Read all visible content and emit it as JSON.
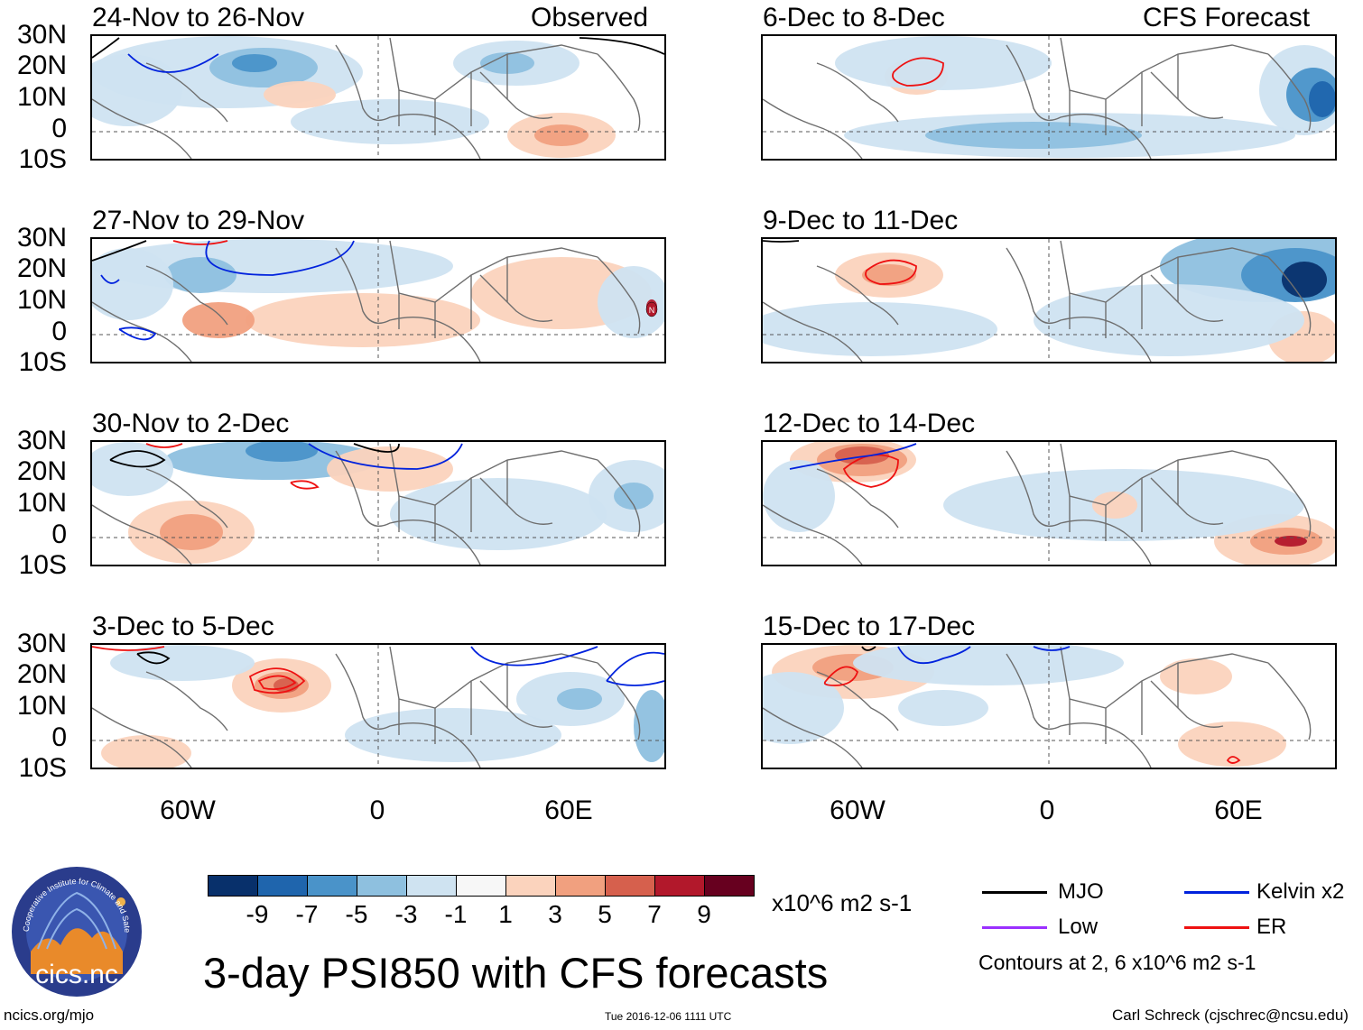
{
  "panels_left": [
    {
      "title": "24-Nov to 26-Nov",
      "tag": "Observed"
    },
    {
      "title": "27-Nov to 29-Nov",
      "tag": ""
    },
    {
      "title": "30-Nov to 2-Dec",
      "tag": ""
    },
    {
      "title": "3-Dec to 5-Dec",
      "tag": ""
    }
  ],
  "panels_right": [
    {
      "title": "6-Dec to 8-Dec",
      "tag": "CFS Forecast"
    },
    {
      "title": "9-Dec to 11-Dec",
      "tag": ""
    },
    {
      "title": "12-Dec to 14-Dec",
      "tag": ""
    },
    {
      "title": "15-Dec to 17-Dec",
      "tag": ""
    }
  ],
  "lat_labels": [
    "30N",
    "20N",
    "10N",
    "0",
    "10S"
  ],
  "lon_labels": [
    "60W",
    "0",
    "60E"
  ],
  "colorbar": {
    "ticks": [
      "-9",
      "-7",
      "-5",
      "-3",
      "-1",
      "1",
      "3",
      "5",
      "7",
      "9"
    ],
    "colors": [
      "#08306b",
      "#1f65ad",
      "#4a93c9",
      "#8ec0df",
      "#cfe3f1",
      "#f7f7f7",
      "#fbd3bd",
      "#f1a07f",
      "#d6604d",
      "#b2182b",
      "#67001f"
    ],
    "units": "x10^6 m2 s-1"
  },
  "legend": {
    "mjo": {
      "label": "MJO",
      "color": "#000000"
    },
    "kelvin": {
      "label": "Kelvin x2",
      "color": "#0022dd"
    },
    "low": {
      "label": "Low",
      "color": "#9b30ff"
    },
    "er": {
      "label": "ER",
      "color": "#ee1111"
    },
    "note": "Contours at 2, 6 x10^6 m2 s-1"
  },
  "main_title": "3-day PSI850 with CFS forecasts",
  "footer": {
    "left": "ncics.org/mjo",
    "center": "Tue 2016-12-06 1111 UTC",
    "right": "Carl Schreck (cjschrec@ncsu.edu)"
  },
  "logo": {
    "text": "cics.nc",
    "ring_text": "Cooperative Institute for Climate and Satellites"
  },
  "storm_marker": {
    "label": "N"
  }
}
